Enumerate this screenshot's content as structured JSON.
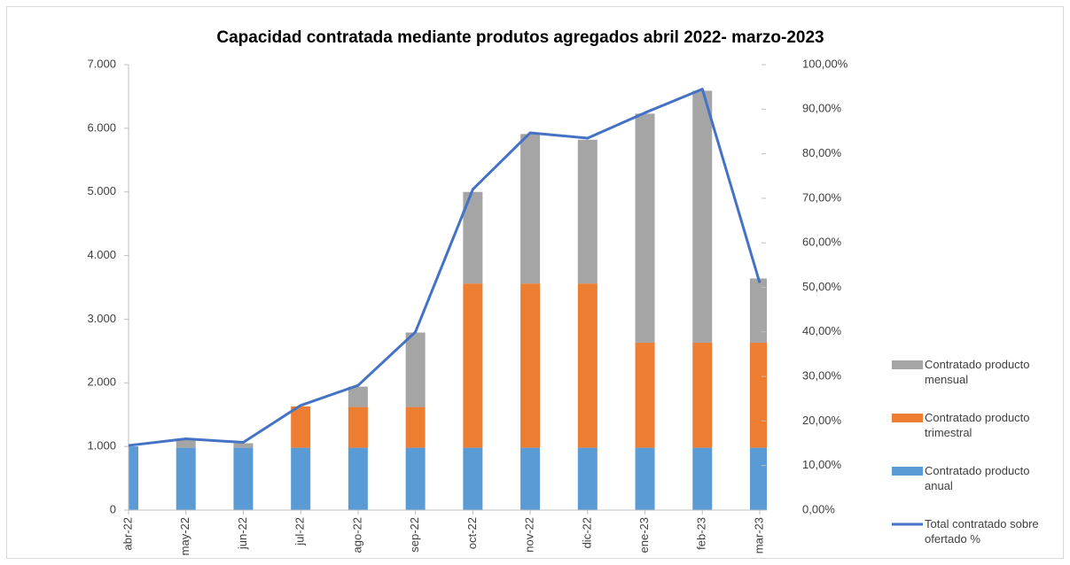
{
  "chart_data": {
    "type": "bar",
    "stacked": true,
    "title": "Capacidad contratada mediante produtos agregados abril 2022- marzo-2023",
    "categories": [
      "abr-22",
      "may-22",
      "jun-22",
      "jul-22",
      "ago-22",
      "sep-22",
      "oct-22",
      "nov-22",
      "dic-22",
      "ene-23",
      "feb-23",
      "mar-23"
    ],
    "series": [
      {
        "name": "Contratado producto anual",
        "color": "#5b9bd5",
        "type": "bar",
        "values": [
          1000,
          980,
          980,
          980,
          980,
          980,
          980,
          980,
          980,
          980,
          980,
          980
        ]
      },
      {
        "name": "Contratado producto trimestral",
        "color": "#ed7d31",
        "type": "bar",
        "values": [
          0,
          0,
          0,
          650,
          640,
          640,
          2580,
          2580,
          2580,
          1650,
          1650,
          1650
        ]
      },
      {
        "name": "Contratado producto mensual",
        "color": "#a5a5a5",
        "type": "bar",
        "values": [
          0,
          120,
          70,
          0,
          320,
          1170,
          1440,
          2350,
          2260,
          3600,
          3960,
          1010
        ]
      },
      {
        "name": "Total contratado sobre ofertado %",
        "color": "#4472c4",
        "type": "line",
        "axis": "y2",
        "values": [
          14.5,
          16,
          15.2,
          23.5,
          28,
          40,
          72,
          84.7,
          83.5,
          89.2,
          94.5,
          51
        ]
      }
    ],
    "ylim": [
      0,
      7000
    ],
    "yticks": [
      0,
      {
        "value": 1000,
        "label": "1.000"
      },
      {
        "value": 2000,
        "label": "2.000"
      },
      {
        "value": 3000,
        "label": "3.000"
      },
      {
        "value": 4000,
        "label": "4.000"
      },
      {
        "value": 5000,
        "label": "5.000"
      },
      {
        "value": 6000,
        "label": "6.000"
      },
      {
        "value": 7000,
        "label": "7.000"
      }
    ],
    "y2lim": [
      0,
      100
    ],
    "y2ticks": [
      {
        "value": 0,
        "label": "0,00%"
      },
      {
        "value": 10,
        "label": "10,00%"
      },
      {
        "value": 20,
        "label": "20,00%"
      },
      {
        "value": 30,
        "label": "30,00%"
      },
      {
        "value": 40,
        "label": "40,00%"
      },
      {
        "value": 50,
        "label": "50,00%"
      },
      {
        "value": 60,
        "label": "60,00%"
      },
      {
        "value": 70,
        "label": "70,00%"
      },
      {
        "value": 80,
        "label": "80,00%"
      },
      {
        "value": 90,
        "label": "90,00%"
      },
      {
        "value": 100,
        "label": "100,00%"
      }
    ],
    "legend": "right"
  }
}
